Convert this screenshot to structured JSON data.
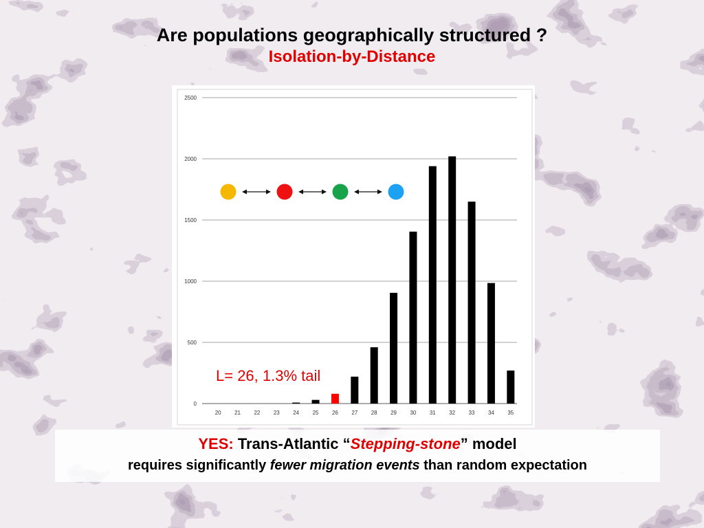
{
  "slide": {
    "title": "Are populations geographically structured ?",
    "subtitle": "Isolation-by-Distance"
  },
  "caption": {
    "line1_prefix": "YES:",
    "line1_main": "Trans-Atlantic “",
    "line1_emph": "Stepping-stone",
    "line1_suffix": "” model",
    "line2_start": "requires significantly ",
    "line2_emph": "fewer migration events",
    "line2_end": " than random expectation"
  },
  "colors": {
    "title": "#000000",
    "accent_red": "#e00000",
    "bar_default": "#000000",
    "bar_highlight": "#ff0000",
    "grid": "#a6a6a6",
    "dots": [
      "#f5b700",
      "#ee1111",
      "#16a34a",
      "#1da1f2"
    ]
  },
  "chart_data": {
    "type": "bar",
    "categories": [
      "20",
      "21",
      "22",
      "23",
      "24",
      "25",
      "26",
      "27",
      "28",
      "29",
      "30",
      "31",
      "32",
      "33",
      "34",
      "35"
    ],
    "values": [
      0,
      0,
      0,
      0,
      8,
      30,
      80,
      220,
      460,
      905,
      1405,
      1940,
      2020,
      1650,
      985,
      270
    ],
    "highlight_category": "26",
    "ylim": [
      0,
      2500
    ],
    "yticks": [
      0,
      500,
      1000,
      1500,
      2000,
      2500
    ],
    "grid": true,
    "annotation": "L= 26, 1.3% tail",
    "diagram": {
      "dot_colors": [
        "#f5b700",
        "#ee1111",
        "#16a34a",
        "#1da1f2"
      ],
      "arrows": "double-headed"
    }
  }
}
